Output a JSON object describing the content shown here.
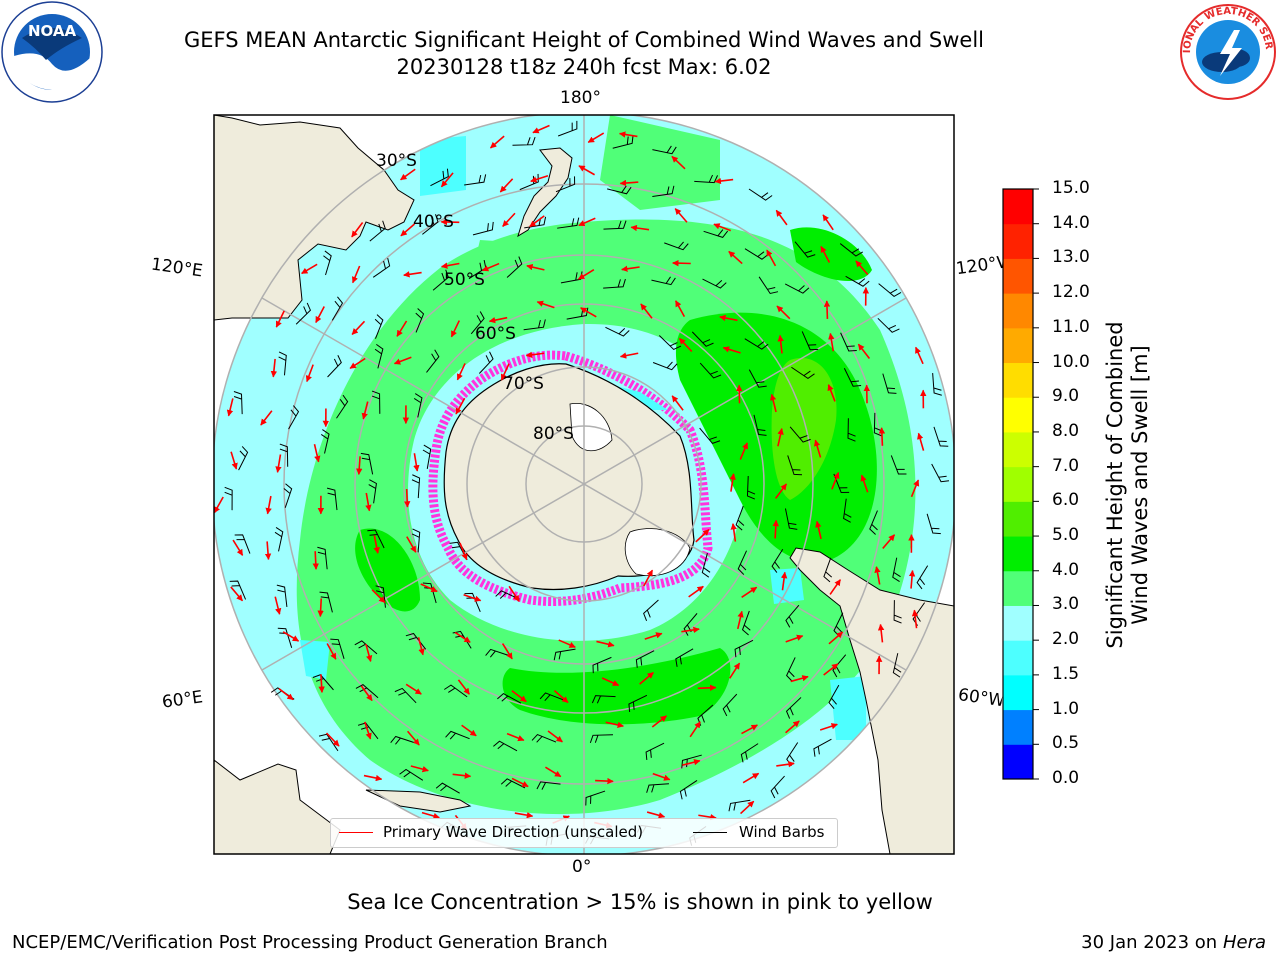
{
  "title": {
    "line1": "GEFS MEAN Antarctic Significant Height of Combined Wind Waves and Swell",
    "line2": "20230128 t18z 240h fcst   Max: 6.02"
  },
  "logos": {
    "left": {
      "icon": "noaa-logo",
      "text": "NOAA"
    },
    "right": {
      "icon": "nws-logo",
      "text": "NATIONAL WEATHER SERVICE"
    }
  },
  "map": {
    "projection": "south-polar-stereographic",
    "longitude_labels": {
      "top": "180°",
      "bottom": "0°",
      "upper_left": "120°E",
      "lower_left": "60°E",
      "upper_right": "120°W",
      "lower_right": "60°W"
    },
    "latitude_labels": [
      "30°S",
      "40°S",
      "50°S",
      "60°S",
      "70°S",
      "80°S"
    ],
    "colors": {
      "land": "#efecdc",
      "ocean_low": "#a0ffff",
      "ocean_mid": "#50ff78",
      "ocean_high": "#00ee00",
      "arrow": "#ff0000",
      "barb": "#000000",
      "sea_ice": "#ff33dd",
      "grid": "#b0b0b0"
    }
  },
  "legend": {
    "items": [
      {
        "label": "Primary Wave Direction (unscaled)",
        "color": "#ff0000"
      },
      {
        "label": "Wind Barbs",
        "color": "#000000"
      }
    ]
  },
  "colorbar": {
    "label_line1": "Significant Height of Combined",
    "label_line2": "Wind Waves and Swell [m]",
    "ticks": [
      "0.0",
      "0.5",
      "1.0",
      "1.5",
      "2.0",
      "3.0",
      "4.0",
      "5.0",
      "6.0",
      "7.0",
      "8.0",
      "9.0",
      "10.0",
      "11.0",
      "12.0",
      "13.0",
      "14.0",
      "15.0"
    ],
    "colors": [
      "#0000ff",
      "#0080ff",
      "#00ffff",
      "#4dffff",
      "#a0ffff",
      "#50ff78",
      "#00ee00",
      "#50ee00",
      "#a0ff00",
      "#ccff00",
      "#ffff00",
      "#ffdd00",
      "#ffaa00",
      "#ff8800",
      "#ff5500",
      "#ff2200",
      "#ff0000"
    ]
  },
  "caption": "Sea Ice Concentration > 15% is shown in pink to yellow",
  "footer": {
    "left": "NCEP/EMC/Verification Post Processing Product Generation Branch",
    "right_date": "30 Jan 2023 on",
    "right_machine": "Hera"
  }
}
